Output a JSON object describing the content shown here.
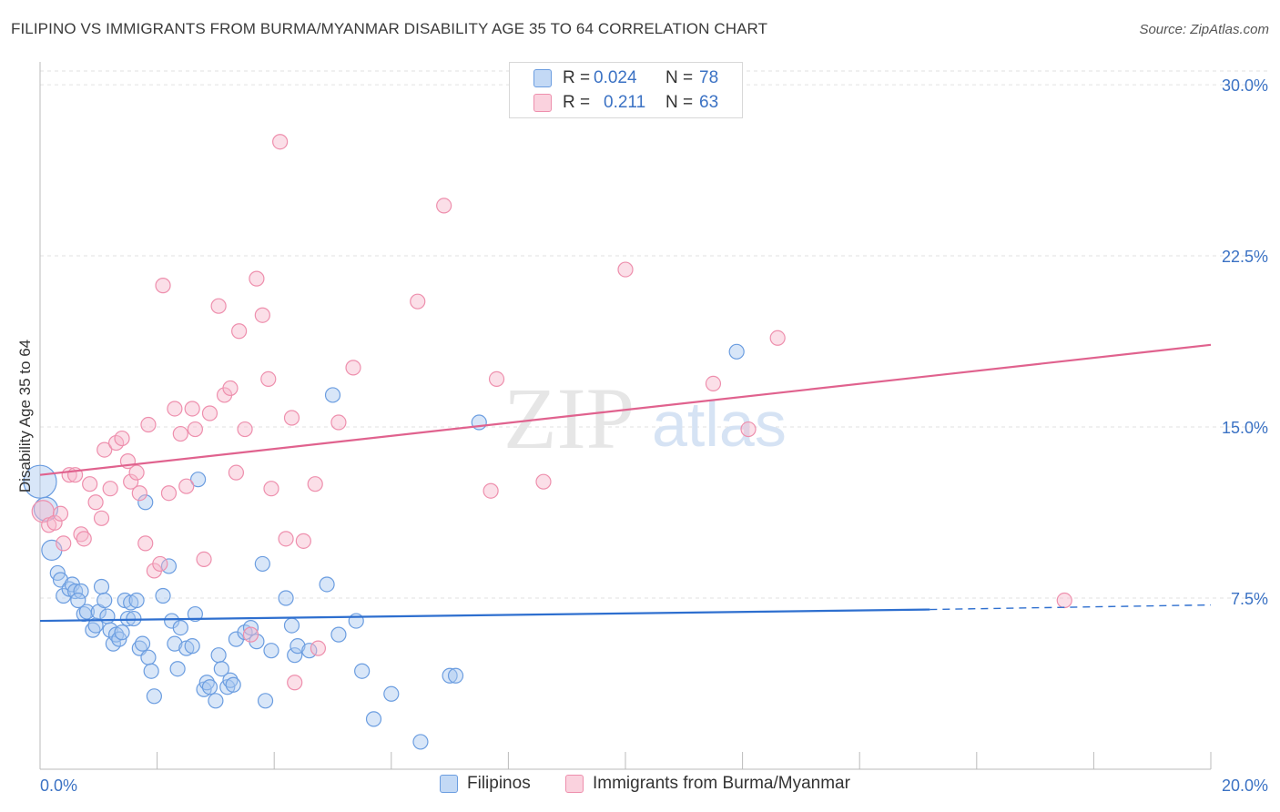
{
  "title": "FILIPINO VS IMMIGRANTS FROM BURMA/MYANMAR DISABILITY AGE 35 TO 64 CORRELATION CHART",
  "source": "Source: ZipAtlas.com",
  "watermark": {
    "zip": "ZIP",
    "atlas": "atlas"
  },
  "legend_top": {
    "rows": [
      {
        "r_label": "R =",
        "r_value": "0.024",
        "n_label": "N =",
        "n_value": "78",
        "color": "#a8c8ef"
      },
      {
        "r_label": "R =",
        "r_value": "0.211",
        "n_label": "N =",
        "n_value": "63",
        "color": "#f7b9cc"
      }
    ]
  },
  "legend_bottom": [
    "Filipinos",
    "Immigrants from Burma/Myanmar"
  ],
  "chart_data": {
    "type": "scatter",
    "xlabel": "",
    "ylabel": "Disability Age 35 to 64",
    "xlim": [
      0,
      20
    ],
    "ylim": [
      0,
      31
    ],
    "x_tick_labels": [
      "0.0%",
      "20.0%"
    ],
    "y_ticks": [
      7.5,
      15.0,
      22.5,
      30.0
    ],
    "y_tick_labels": [
      "7.5%",
      "15.0%",
      "22.5%",
      "30.0%"
    ],
    "grid": true,
    "series": [
      {
        "name": "Filipinos",
        "color": "#a8c8ef",
        "stroke": "#6b9de0",
        "line_color": "#2e6fcf",
        "trend": {
          "x0": 0,
          "y0": 6.5,
          "x1": 15.2,
          "y1": 7.0,
          "dash_to_x": 20,
          "dash_to_y": 7.2
        },
        "points": [
          [
            0.0,
            12.6
          ],
          [
            0.1,
            11.4
          ],
          [
            0.2,
            9.6
          ],
          [
            0.3,
            8.6
          ],
          [
            0.35,
            8.3
          ],
          [
            0.4,
            7.6
          ],
          [
            0.5,
            7.9
          ],
          [
            0.55,
            8.1
          ],
          [
            0.6,
            7.8
          ],
          [
            0.7,
            7.8
          ],
          [
            0.65,
            7.4
          ],
          [
            0.75,
            6.8
          ],
          [
            0.8,
            6.9
          ],
          [
            0.9,
            6.1
          ],
          [
            0.95,
            6.3
          ],
          [
            1.0,
            6.9
          ],
          [
            1.05,
            8.0
          ],
          [
            1.1,
            7.4
          ],
          [
            1.15,
            6.7
          ],
          [
            1.2,
            6.1
          ],
          [
            1.25,
            5.5
          ],
          [
            1.3,
            5.9
          ],
          [
            1.35,
            5.7
          ],
          [
            1.4,
            6.0
          ],
          [
            1.45,
            7.4
          ],
          [
            1.5,
            6.6
          ],
          [
            1.55,
            7.3
          ],
          [
            1.6,
            6.6
          ],
          [
            1.65,
            7.4
          ],
          [
            1.7,
            5.3
          ],
          [
            1.75,
            5.5
          ],
          [
            1.8,
            11.7
          ],
          [
            1.85,
            4.9
          ],
          [
            1.9,
            4.3
          ],
          [
            1.95,
            3.2
          ],
          [
            2.1,
            7.6
          ],
          [
            2.2,
            8.9
          ],
          [
            2.25,
            6.5
          ],
          [
            2.3,
            5.5
          ],
          [
            2.35,
            4.4
          ],
          [
            2.4,
            6.2
          ],
          [
            2.5,
            5.3
          ],
          [
            2.6,
            5.4
          ],
          [
            2.65,
            6.8
          ],
          [
            2.7,
            12.7
          ],
          [
            2.8,
            3.5
          ],
          [
            2.85,
            3.8
          ],
          [
            2.9,
            3.6
          ],
          [
            3.0,
            3.0
          ],
          [
            3.05,
            5.0
          ],
          [
            3.1,
            4.4
          ],
          [
            3.2,
            3.6
          ],
          [
            3.25,
            3.9
          ],
          [
            3.3,
            3.7
          ],
          [
            3.35,
            5.7
          ],
          [
            3.5,
            6.0
          ],
          [
            3.6,
            6.2
          ],
          [
            3.7,
            5.6
          ],
          [
            3.8,
            9.0
          ],
          [
            3.85,
            3.0
          ],
          [
            3.95,
            5.2
          ],
          [
            4.2,
            7.5
          ],
          [
            4.3,
            6.3
          ],
          [
            4.35,
            5.0
          ],
          [
            4.4,
            5.4
          ],
          [
            4.6,
            5.2
          ],
          [
            4.9,
            8.1
          ],
          [
            5.0,
            16.4
          ],
          [
            5.1,
            5.9
          ],
          [
            5.4,
            6.5
          ],
          [
            5.5,
            4.3
          ],
          [
            5.7,
            2.2
          ],
          [
            6.0,
            3.3
          ],
          [
            6.5,
            1.2
          ],
          [
            7.0,
            4.1
          ],
          [
            7.1,
            4.1
          ],
          [
            7.5,
            15.2
          ],
          [
            11.9,
            18.3
          ]
        ]
      },
      {
        "name": "Immigrants from Burma/Myanmar",
        "color": "#f7b9cc",
        "stroke": "#ee8fad",
        "line_color": "#e0628e",
        "trend": {
          "x0": 0,
          "y0": 12.9,
          "x1": 20,
          "y1": 18.6
        },
        "points": [
          [
            0.05,
            11.3
          ],
          [
            0.15,
            10.7
          ],
          [
            0.25,
            10.8
          ],
          [
            0.35,
            11.2
          ],
          [
            0.4,
            9.9
          ],
          [
            0.5,
            12.9
          ],
          [
            0.6,
            12.9
          ],
          [
            0.7,
            10.3
          ],
          [
            0.75,
            10.1
          ],
          [
            0.85,
            12.5
          ],
          [
            0.95,
            11.7
          ],
          [
            1.05,
            11.0
          ],
          [
            1.1,
            14.0
          ],
          [
            1.2,
            12.3
          ],
          [
            1.3,
            14.3
          ],
          [
            1.4,
            14.5
          ],
          [
            1.5,
            13.5
          ],
          [
            1.55,
            12.6
          ],
          [
            1.65,
            13.0
          ],
          [
            1.7,
            12.1
          ],
          [
            1.8,
            9.9
          ],
          [
            1.85,
            15.1
          ],
          [
            1.95,
            8.7
          ],
          [
            2.05,
            9.0
          ],
          [
            2.1,
            21.2
          ],
          [
            2.2,
            12.1
          ],
          [
            2.3,
            15.8
          ],
          [
            2.4,
            14.7
          ],
          [
            2.5,
            12.4
          ],
          [
            2.6,
            15.8
          ],
          [
            2.65,
            14.9
          ],
          [
            2.8,
            9.2
          ],
          [
            2.9,
            15.6
          ],
          [
            3.05,
            20.3
          ],
          [
            3.15,
            16.4
          ],
          [
            3.25,
            16.7
          ],
          [
            3.35,
            13.0
          ],
          [
            3.4,
            19.2
          ],
          [
            3.5,
            14.9
          ],
          [
            3.6,
            5.9
          ],
          [
            3.7,
            21.5
          ],
          [
            3.8,
            19.9
          ],
          [
            3.9,
            17.1
          ],
          [
            3.95,
            12.3
          ],
          [
            4.1,
            27.5
          ],
          [
            4.2,
            10.1
          ],
          [
            4.3,
            15.4
          ],
          [
            4.35,
            3.8
          ],
          [
            4.5,
            10.0
          ],
          [
            4.7,
            12.5
          ],
          [
            4.75,
            5.3
          ],
          [
            5.1,
            15.2
          ],
          [
            5.35,
            17.6
          ],
          [
            6.45,
            20.5
          ],
          [
            6.9,
            24.7
          ],
          [
            7.7,
            12.2
          ],
          [
            7.8,
            17.1
          ],
          [
            8.6,
            12.6
          ],
          [
            10.0,
            21.9
          ],
          [
            11.5,
            16.9
          ],
          [
            12.1,
            14.9
          ],
          [
            12.6,
            18.9
          ],
          [
            17.5,
            7.4
          ]
        ]
      }
    ]
  }
}
